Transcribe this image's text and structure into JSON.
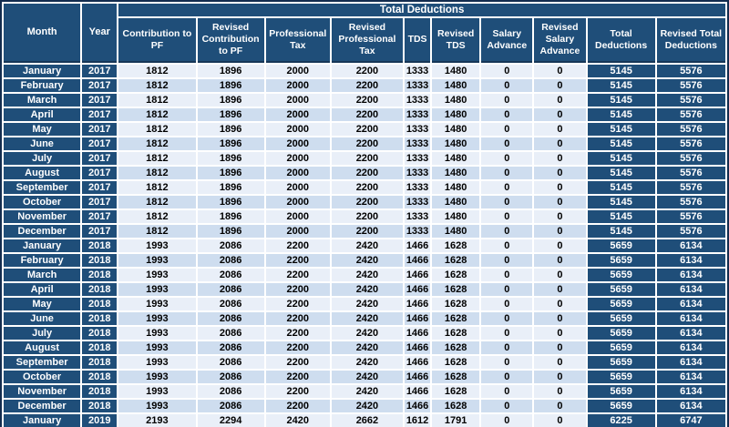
{
  "table": {
    "banner": "Total Deductions",
    "headers": [
      "Month",
      "Year",
      "Contribution to PF",
      "Revised Contribution to PF",
      "Professional Tax",
      "Revised Professional Tax",
      "TDS",
      "Revised TDS",
      "Salary Advance",
      "Revised Salary Advance",
      "Total Deductions",
      "Revised Total Deductions"
    ],
    "rows": [
      [
        "January",
        "2017",
        "1812",
        "1896",
        "2000",
        "2200",
        "1333",
        "1480",
        "0",
        "0",
        "5145",
        "5576"
      ],
      [
        "February",
        "2017",
        "1812",
        "1896",
        "2000",
        "2200",
        "1333",
        "1480",
        "0",
        "0",
        "5145",
        "5576"
      ],
      [
        "March",
        "2017",
        "1812",
        "1896",
        "2000",
        "2200",
        "1333",
        "1480",
        "0",
        "0",
        "5145",
        "5576"
      ],
      [
        "April",
        "2017",
        "1812",
        "1896",
        "2000",
        "2200",
        "1333",
        "1480",
        "0",
        "0",
        "5145",
        "5576"
      ],
      [
        "May",
        "2017",
        "1812",
        "1896",
        "2000",
        "2200",
        "1333",
        "1480",
        "0",
        "0",
        "5145",
        "5576"
      ],
      [
        "June",
        "2017",
        "1812",
        "1896",
        "2000",
        "2200",
        "1333",
        "1480",
        "0",
        "0",
        "5145",
        "5576"
      ],
      [
        "July",
        "2017",
        "1812",
        "1896",
        "2000",
        "2200",
        "1333",
        "1480",
        "0",
        "0",
        "5145",
        "5576"
      ],
      [
        "August",
        "2017",
        "1812",
        "1896",
        "2000",
        "2200",
        "1333",
        "1480",
        "0",
        "0",
        "5145",
        "5576"
      ],
      [
        "September",
        "2017",
        "1812",
        "1896",
        "2000",
        "2200",
        "1333",
        "1480",
        "0",
        "0",
        "5145",
        "5576"
      ],
      [
        "October",
        "2017",
        "1812",
        "1896",
        "2000",
        "2200",
        "1333",
        "1480",
        "0",
        "0",
        "5145",
        "5576"
      ],
      [
        "November",
        "2017",
        "1812",
        "1896",
        "2000",
        "2200",
        "1333",
        "1480",
        "0",
        "0",
        "5145",
        "5576"
      ],
      [
        "December",
        "2017",
        "1812",
        "1896",
        "2000",
        "2200",
        "1333",
        "1480",
        "0",
        "0",
        "5145",
        "5576"
      ],
      [
        "January",
        "2018",
        "1993",
        "2086",
        "2200",
        "2420",
        "1466",
        "1628",
        "0",
        "0",
        "5659",
        "6134"
      ],
      [
        "February",
        "2018",
        "1993",
        "2086",
        "2200",
        "2420",
        "1466",
        "1628",
        "0",
        "0",
        "5659",
        "6134"
      ],
      [
        "March",
        "2018",
        "1993",
        "2086",
        "2200",
        "2420",
        "1466",
        "1628",
        "0",
        "0",
        "5659",
        "6134"
      ],
      [
        "April",
        "2018",
        "1993",
        "2086",
        "2200",
        "2420",
        "1466",
        "1628",
        "0",
        "0",
        "5659",
        "6134"
      ],
      [
        "May",
        "2018",
        "1993",
        "2086",
        "2200",
        "2420",
        "1466",
        "1628",
        "0",
        "0",
        "5659",
        "6134"
      ],
      [
        "June",
        "2018",
        "1993",
        "2086",
        "2200",
        "2420",
        "1466",
        "1628",
        "0",
        "0",
        "5659",
        "6134"
      ],
      [
        "July",
        "2018",
        "1993",
        "2086",
        "2200",
        "2420",
        "1466",
        "1628",
        "0",
        "0",
        "5659",
        "6134"
      ],
      [
        "August",
        "2018",
        "1993",
        "2086",
        "2200",
        "2420",
        "1466",
        "1628",
        "0",
        "0",
        "5659",
        "6134"
      ],
      [
        "September",
        "2018",
        "1993",
        "2086",
        "2200",
        "2420",
        "1466",
        "1628",
        "0",
        "0",
        "5659",
        "6134"
      ],
      [
        "October",
        "2018",
        "1993",
        "2086",
        "2200",
        "2420",
        "1466",
        "1628",
        "0",
        "0",
        "5659",
        "6134"
      ],
      [
        "November",
        "2018",
        "1993",
        "2086",
        "2200",
        "2420",
        "1466",
        "1628",
        "0",
        "0",
        "5659",
        "6134"
      ],
      [
        "December",
        "2018",
        "1993",
        "2086",
        "2200",
        "2420",
        "1466",
        "1628",
        "0",
        "0",
        "5659",
        "6134"
      ],
      [
        "January",
        "2019",
        "2193",
        "2294",
        "2420",
        "2662",
        "1612",
        "1791",
        "0",
        "0",
        "6225",
        "6747"
      ]
    ]
  },
  "colors": {
    "header_blue": "#1F4E79",
    "row_light": "#E9EFF8",
    "row_alt": "#CEDDEF",
    "separator": "#FFFFFF",
    "outer_border": "#122C4E"
  }
}
